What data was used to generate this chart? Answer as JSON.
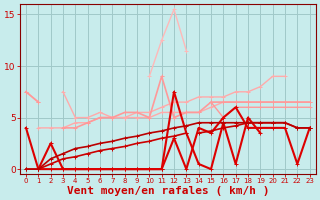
{
  "title": "",
  "xlabel": "Vent moyen/en rafales ( km/h )",
  "background_color": "#c8ecec",
  "grid_color": "#a0c8c8",
  "x_values": [
    0,
    1,
    2,
    3,
    4,
    5,
    6,
    7,
    8,
    9,
    10,
    11,
    12,
    13,
    14,
    15,
    16,
    17,
    18,
    19,
    20,
    21,
    22,
    23
  ],
  "ylim": [
    -0.5,
    16
  ],
  "yticks": [
    0,
    5,
    10,
    15
  ],
  "series": [
    {
      "y": [
        7.5,
        6.5,
        null,
        null,
        null,
        null,
        null,
        null,
        null,
        null,
        null,
        null,
        null,
        null,
        null,
        null,
        null,
        null,
        null,
        null,
        null,
        null,
        null,
        null
      ],
      "color": "#ffaaaa",
      "linewidth": 1.0,
      "marker": "+"
    },
    {
      "y": [
        null,
        4,
        4,
        4,
        4.5,
        4.5,
        5,
        5,
        5,
        5.5,
        5.5,
        6,
        6.5,
        6.5,
        7,
        7,
        7,
        7.5,
        7.5,
        8,
        9,
        9,
        null,
        null
      ],
      "color": "#ffaaaa",
      "linewidth": 1.0,
      "marker": "+"
    },
    {
      "y": [
        null,
        null,
        null,
        7.5,
        5,
        5,
        5.5,
        5,
        5,
        5,
        5,
        5.5,
        5.5,
        5.5,
        5.5,
        6,
        6.5,
        6.5,
        6.5,
        6.5,
        6.5,
        6.5,
        6.5,
        6.5
      ],
      "color": "#ffaaaa",
      "linewidth": 1.0,
      "marker": "+"
    },
    {
      "y": [
        7.5,
        6.5,
        null,
        4,
        4,
        4.5,
        5,
        5,
        5.5,
        5.5,
        5,
        9,
        5,
        5.5,
        5.5,
        6.5,
        6.5,
        6.5,
        6.5,
        6.5,
        6.5,
        6.5,
        6.5,
        6.5
      ],
      "color": "#ff9999",
      "linewidth": 1.2,
      "marker": "+"
    },
    {
      "y": [
        null,
        null,
        null,
        null,
        null,
        null,
        null,
        null,
        null,
        null,
        9,
        12.5,
        15.5,
        11.5,
        null,
        null,
        null,
        null,
        null,
        null,
        null,
        null,
        null,
        null
      ],
      "color": "#ffb8b8",
      "linewidth": 1.0,
      "marker": "+"
    },
    {
      "y": [
        null,
        null,
        null,
        null,
        null,
        null,
        null,
        null,
        null,
        null,
        null,
        null,
        null,
        null,
        null,
        6.5,
        5,
        6,
        6,
        6,
        6,
        6,
        6,
        6
      ],
      "color": "#ff9999",
      "linewidth": 1.0,
      "marker": "+"
    },
    {
      "y": [
        4,
        0,
        0,
        0,
        0,
        0,
        0,
        0,
        0,
        0,
        0,
        0,
        7.5,
        3.5,
        0.5,
        0,
        4.5,
        0.5,
        5,
        3.5,
        null,
        4,
        null,
        null
      ],
      "color": "#dd0000",
      "linewidth": 1.5,
      "marker": "+"
    },
    {
      "y": [
        null,
        0,
        2.5,
        0,
        0,
        0,
        0,
        0,
        0,
        0,
        0,
        0,
        3,
        0,
        4,
        3.5,
        5,
        6,
        4,
        4,
        4,
        4,
        0.5,
        4
      ],
      "color": "#dd0000",
      "linewidth": 1.5,
      "marker": "+"
    },
    {
      "y": [
        0,
        0,
        0.5,
        1,
        1.2,
        1.5,
        1.8,
        2,
        2.2,
        2.5,
        2.7,
        3,
        3.2,
        3.5,
        null,
        null,
        null,
        null,
        null,
        null,
        null,
        null,
        null,
        null
      ],
      "color": "#cc0000",
      "linewidth": 1.2,
      "marker": "+"
    },
    {
      "y": [
        null,
        null,
        null,
        null,
        null,
        null,
        null,
        null,
        null,
        null,
        null,
        null,
        null,
        null,
        3.5,
        3.7,
        4,
        4.2,
        4.5,
        4.5,
        4.5,
        4.5,
        4,
        4
      ],
      "color": "#cc0000",
      "linewidth": 1.2,
      "marker": "+"
    },
    {
      "y": [
        0,
        0,
        1,
        1.5,
        2,
        2.2,
        2.5,
        2.7,
        3,
        3.2,
        3.5,
        3.7,
        4,
        4.2,
        4.5,
        4.5,
        4.5,
        4.5,
        4.5,
        4.5,
        4.5,
        4.5,
        4,
        4
      ],
      "color": "#bb0000",
      "linewidth": 1.2,
      "marker": "+"
    }
  ],
  "tick_label_color": "#cc0000",
  "axis_color": "#880000",
  "xlabel_color": "#cc0000",
  "xlabel_fontsize": 8
}
